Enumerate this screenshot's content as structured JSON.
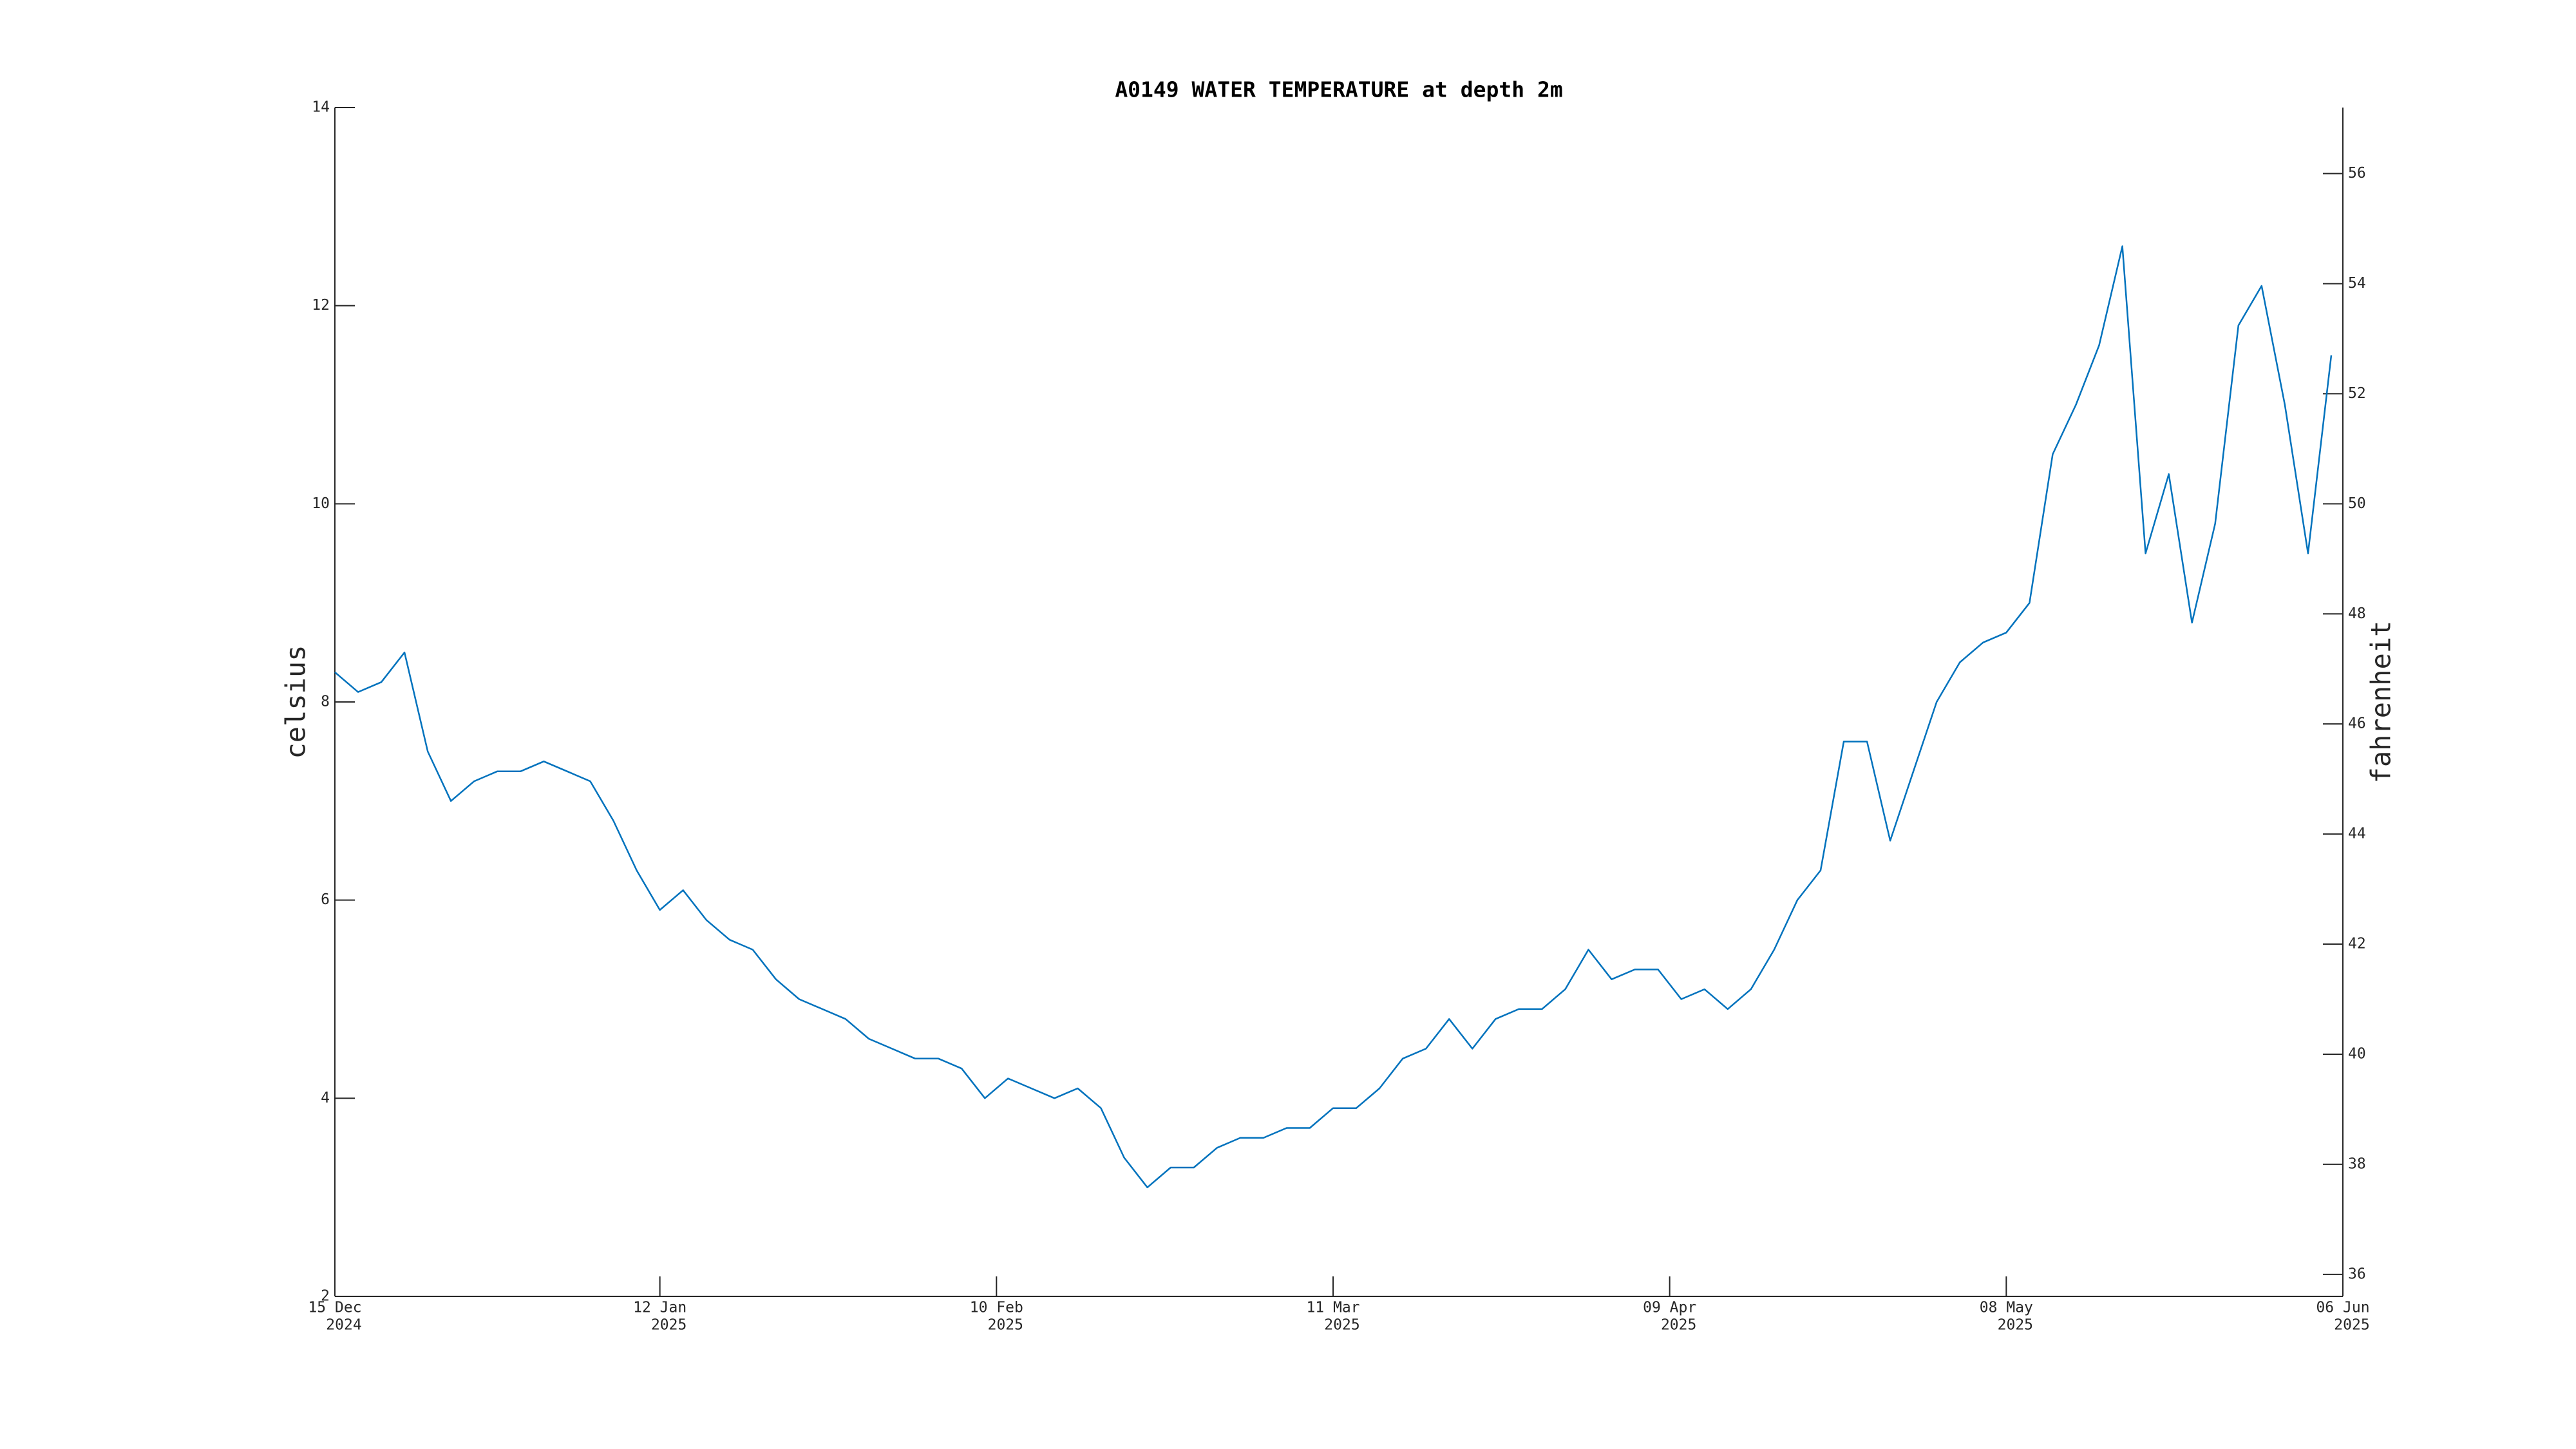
{
  "chart_data": {
    "type": "line",
    "title": "A0149 WATER TEMPERATURE at depth 2m",
    "y_label": "celsius",
    "y2_label": "fahrenheit",
    "xlim": [
      "2024-12-15",
      "2025-06-06"
    ],
    "xticks": [
      {
        "value": "2024-12-15",
        "label": [
          "15 Dec",
          "2024"
        ]
      },
      {
        "value": "2025-01-12",
        "label": [
          "12 Jan",
          "2025"
        ]
      },
      {
        "value": "2025-02-10",
        "label": [
          "10 Feb",
          "2025"
        ]
      },
      {
        "value": "2025-03-11",
        "label": [
          "11 Mar",
          "2025"
        ]
      },
      {
        "value": "2025-04-09",
        "label": [
          "09 Apr",
          "2025"
        ]
      },
      {
        "value": "2025-05-08",
        "label": [
          "08 May",
          "2025"
        ]
      },
      {
        "value": "2025-06-06",
        "label": [
          "06 Jun",
          "2025"
        ]
      }
    ],
    "ylim": [
      2,
      14
    ],
    "yticks": [
      2,
      4,
      6,
      8,
      10,
      12,
      14
    ],
    "y2lim": [
      35.6,
      57.2
    ],
    "y2ticks": [
      36,
      38,
      40,
      42,
      44,
      46,
      48,
      50,
      52,
      54,
      56
    ],
    "x": [
      "2024-12-15",
      "2024-12-17",
      "2024-12-19",
      "2024-12-21",
      "2024-12-23",
      "2024-12-25",
      "2024-12-27",
      "2024-12-29",
      "2024-12-31",
      "2025-01-02",
      "2025-01-04",
      "2025-01-06",
      "2025-01-08",
      "2025-01-10",
      "2025-01-12",
      "2025-01-14",
      "2025-01-16",
      "2025-01-18",
      "2025-01-20",
      "2025-01-22",
      "2025-01-24",
      "2025-01-26",
      "2025-01-28",
      "2025-01-30",
      "2025-02-01",
      "2025-02-03",
      "2025-02-05",
      "2025-02-07",
      "2025-02-09",
      "2025-02-11",
      "2025-02-13",
      "2025-02-15",
      "2025-02-17",
      "2025-02-19",
      "2025-02-21",
      "2025-02-23",
      "2025-02-25",
      "2025-02-27",
      "2025-03-01",
      "2025-03-03",
      "2025-03-05",
      "2025-03-07",
      "2025-03-09",
      "2025-03-11",
      "2025-03-13",
      "2025-03-15",
      "2025-03-17",
      "2025-03-19",
      "2025-03-21",
      "2025-03-23",
      "2025-03-25",
      "2025-03-27",
      "2025-03-29",
      "2025-03-31",
      "2025-04-02",
      "2025-04-04",
      "2025-04-06",
      "2025-04-08",
      "2025-04-10",
      "2025-04-12",
      "2025-04-14",
      "2025-04-16",
      "2025-04-18",
      "2025-04-20",
      "2025-04-22",
      "2025-04-24",
      "2025-04-26",
      "2025-04-28",
      "2025-04-30",
      "2025-05-02",
      "2025-05-04",
      "2025-05-06",
      "2025-05-08",
      "2025-05-10",
      "2025-05-12",
      "2025-05-14",
      "2025-05-16",
      "2025-05-18",
      "2025-05-20",
      "2025-05-22",
      "2025-05-24",
      "2025-05-26",
      "2025-05-28",
      "2025-05-30",
      "2025-06-01",
      "2025-06-03",
      "2025-06-05"
    ],
    "series": [
      {
        "name": "water temperature",
        "color": "#0072bd",
        "values": [
          8.3,
          8.1,
          8.2,
          8.5,
          7.5,
          7.0,
          7.2,
          7.3,
          7.3,
          7.4,
          7.3,
          7.2,
          6.8,
          6.3,
          5.9,
          6.1,
          5.8,
          5.6,
          5.5,
          5.2,
          5.0,
          4.9,
          4.8,
          4.6,
          4.5,
          4.4,
          4.4,
          4.3,
          4.0,
          4.2,
          4.1,
          4.0,
          4.1,
          3.9,
          3.4,
          3.1,
          3.3,
          3.3,
          3.5,
          3.6,
          3.6,
          3.7,
          3.7,
          3.9,
          3.9,
          4.1,
          4.4,
          4.5,
          4.8,
          4.5,
          4.8,
          4.9,
          4.9,
          5.1,
          5.5,
          5.2,
          5.3,
          5.3,
          5.0,
          5.1,
          4.9,
          5.1,
          5.5,
          6.0,
          6.3,
          7.6,
          7.6,
          6.6,
          7.3,
          8.0,
          8.4,
          8.6,
          8.7,
          9.0,
          10.5,
          11.0,
          11.6,
          12.6,
          9.5,
          10.3,
          8.8,
          9.8,
          11.8,
          12.2,
          11.0,
          9.5,
          11.5
        ]
      }
    ]
  }
}
